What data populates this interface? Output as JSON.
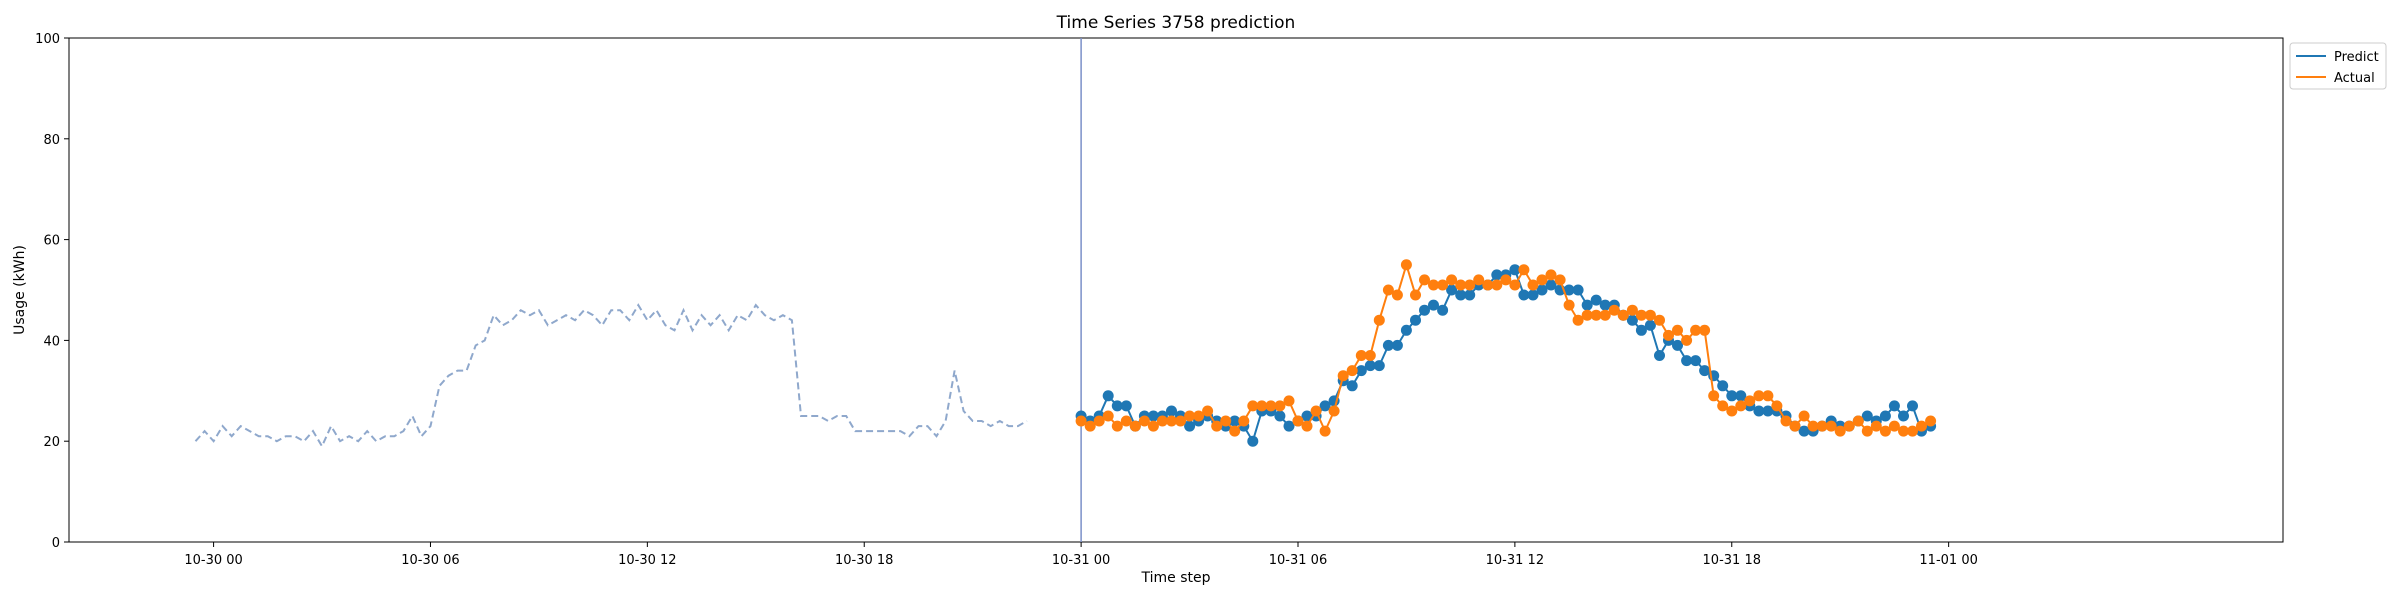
{
  "chart_data": {
    "type": "line",
    "title": "Time Series 3758 prediction",
    "xlabel": "Time step",
    "ylabel": "Usage (kWh)",
    "ylim": [
      0,
      100
    ],
    "yticks": [
      "0",
      "20",
      "40",
      "60",
      "80",
      "100"
    ],
    "xlim": [
      "2023-10-29 20:00",
      "2023-11-01 09:15"
    ],
    "xticks": [
      {
        "label": "10-30 00",
        "t": "2023-10-30 00:00"
      },
      {
        "label": "10-30 06",
        "t": "2023-10-30 06:00"
      },
      {
        "label": "10-30 12",
        "t": "2023-10-30 12:00"
      },
      {
        "label": "10-30 18",
        "t": "2023-10-30 18:00"
      },
      {
        "label": "10-31 00",
        "t": "2023-10-31 00:00"
      },
      {
        "label": "10-31 06",
        "t": "2023-10-31 06:00"
      },
      {
        "label": "10-31 12",
        "t": "2023-10-31 12:00"
      },
      {
        "label": "10-31 18",
        "t": "2023-10-31 18:00"
      },
      {
        "label": "11-01 00",
        "t": "2023-11-01 00:00"
      }
    ],
    "x_start": "2023-10-29 23:30",
    "x_step": "15 min",
    "divider_at": "2023-10-31 00:00",
    "history": {
      "style": "dashed",
      "color": "#8FA8CC",
      "values": [
        20,
        22,
        20,
        23,
        21,
        23,
        22,
        21,
        21,
        20,
        21,
        21,
        20,
        22,
        19,
        23,
        20,
        21,
        20,
        22,
        20,
        21,
        21,
        22,
        25,
        21,
        23,
        31,
        33,
        34,
        34,
        39,
        40,
        45,
        43,
        44,
        46,
        45,
        46,
        43,
        44,
        45,
        44,
        46,
        45,
        43,
        46,
        46,
        44,
        47,
        44,
        46,
        43,
        42,
        46,
        42,
        45,
        43,
        45,
        42,
        45,
        44,
        47,
        45,
        44,
        45,
        44,
        25,
        25,
        25,
        24,
        25,
        25,
        22,
        22,
        22,
        22,
        22,
        22,
        21,
        23,
        23,
        21,
        24,
        34,
        26,
        24,
        24,
        23,
        24,
        23,
        23,
        24
      ]
    },
    "series": [
      {
        "name": "Predict",
        "color": "#1f77b4",
        "values": [
          25,
          24,
          25,
          29,
          27,
          27,
          23,
          25,
          25,
          25,
          26,
          25,
          23,
          24,
          25,
          24,
          23,
          24,
          23,
          20,
          26,
          26,
          25,
          23,
          24,
          25,
          25,
          27,
          28,
          32,
          31,
          34,
          35,
          35,
          39,
          39,
          42,
          44,
          46,
          47,
          46,
          50,
          49,
          49,
          51,
          51,
          53,
          53,
          54,
          49,
          49,
          50,
          51,
          50,
          50,
          50,
          47,
          48,
          47,
          47,
          45,
          44,
          42,
          43,
          37,
          40,
          39,
          36,
          36,
          34,
          33,
          31,
          29,
          29,
          27,
          26,
          26,
          26,
          25,
          23,
          22,
          22,
          23,
          24,
          23,
          23,
          24,
          25,
          24,
          25,
          27,
          25,
          27,
          22,
          23
        ]
      },
      {
        "name": "Actual",
        "color": "#ff7f0e",
        "values": [
          24,
          23,
          24,
          25,
          23,
          24,
          23,
          24,
          23,
          24,
          24,
          24,
          25,
          25,
          26,
          23,
          24,
          22,
          24,
          27,
          27,
          27,
          27,
          28,
          24,
          23,
          26,
          22,
          26,
          33,
          34,
          37,
          37,
          44,
          50,
          49,
          55,
          49,
          52,
          51,
          51,
          52,
          51,
          51,
          52,
          51,
          51,
          52,
          51,
          54,
          51,
          52,
          53,
          52,
          47,
          44,
          45,
          45,
          45,
          46,
          45,
          46,
          45,
          45,
          44,
          41,
          42,
          40,
          42,
          42,
          29,
          27,
          26,
          27,
          28,
          29,
          29,
          27,
          24,
          23,
          25,
          23,
          23,
          23,
          22,
          23,
          24,
          22,
          23,
          22,
          23,
          22,
          22,
          23,
          24
        ]
      }
    ],
    "legend": [
      "Predict",
      "Actual"
    ],
    "legend_position": "top-right",
    "grid": false
  }
}
